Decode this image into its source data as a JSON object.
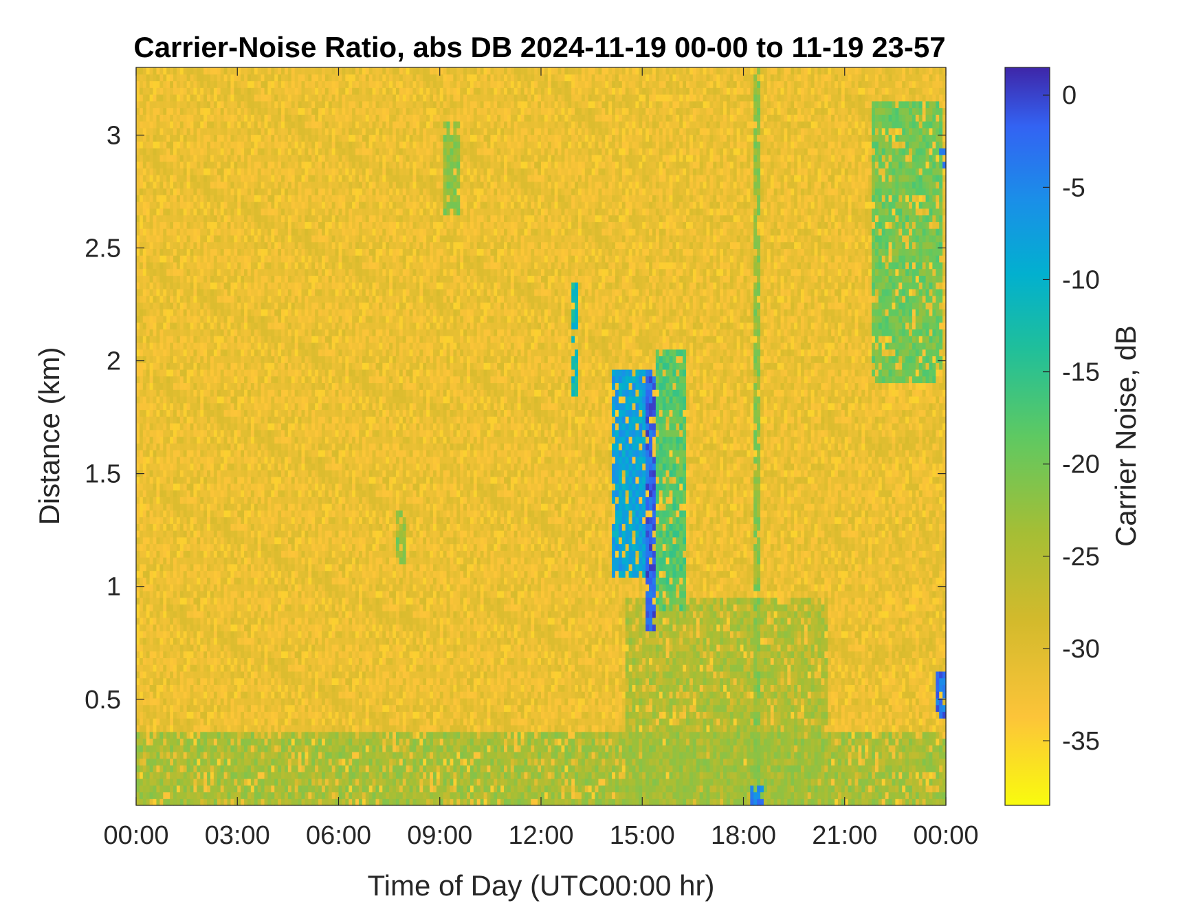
{
  "chart_data": {
    "type": "heatmap",
    "title": "Carrier-Noise Ratio, abs DB 2024-11-19 00-00 to 11-19 23-57",
    "xlabel": "Time of Day (UTC00:00 hr)",
    "ylabel": "Distance (km)",
    "colorbar_label": "Carrier Noise, dB",
    "x_range_hours": [
      0,
      24
    ],
    "y_range_km": [
      0.03,
      3.3
    ],
    "c_range_db": [
      -38.5,
      1.5
    ],
    "x_tick_values": [
      0,
      3,
      6,
      9,
      12,
      15,
      18,
      21,
      24
    ],
    "x_tick_labels": [
      "00:00",
      "03:00",
      "06:00",
      "09:00",
      "12:00",
      "15:00",
      "18:00",
      "21:00",
      "00:00"
    ],
    "y_tick_values": [
      0.5,
      1,
      1.5,
      2,
      2.5,
      3
    ],
    "y_tick_labels": [
      "0.5",
      "1",
      "1.5",
      "2",
      "2.5",
      "3"
    ],
    "c_tick_values": [
      0,
      -5,
      -10,
      -15,
      -20,
      -25,
      -30,
      -35
    ],
    "c_tick_labels": [
      "0",
      "-5",
      "-10",
      "-15",
      "-20",
      "-25",
      "-30",
      "-35"
    ],
    "colormap": "parula",
    "background_db": -32,
    "features": [
      {
        "desc": "near-ground layer",
        "t": [
          0,
          24
        ],
        "d": [
          0.03,
          0.35
        ],
        "db": -24
      },
      {
        "desc": "afternoon boundary layer",
        "t": [
          14.5,
          20.5
        ],
        "d": [
          0.03,
          0.95
        ],
        "db": -25
      },
      {
        "desc": "small plume",
        "t": [
          9.1,
          9.6
        ],
        "d": [
          2.65,
          3.05
        ],
        "db": -22
      },
      {
        "desc": "small plume",
        "t": [
          7.7,
          8.0
        ],
        "d": [
          1.1,
          1.35
        ],
        "db": -22
      },
      {
        "desc": "streak",
        "t": [
          12.9,
          13.1
        ],
        "d": [
          1.85,
          2.35
        ],
        "db": -12
      },
      {
        "desc": "strong echo cluster",
        "t": [
          14.1,
          15.1
        ],
        "d": [
          1.05,
          1.95
        ],
        "db": -8
      },
      {
        "desc": "strong echo core",
        "t": [
          15.1,
          15.4
        ],
        "d": [
          0.8,
          1.95
        ],
        "db": -2
      },
      {
        "desc": "weak streaks",
        "t": [
          15.4,
          16.3
        ],
        "d": [
          0.9,
          2.05
        ],
        "db": -18
      },
      {
        "desc": "vertical line",
        "t": [
          18.35,
          18.5
        ],
        "d": [
          0.03,
          3.3
        ],
        "db": -22
      },
      {
        "desc": "upper cloud",
        "t": [
          21.8,
          23.9
        ],
        "d": [
          1.9,
          3.15
        ],
        "db": -20
      },
      {
        "desc": "top-right echo",
        "t": [
          23.8,
          24
        ],
        "d": [
          2.85,
          2.95
        ],
        "db": -5
      },
      {
        "desc": "low-right echo",
        "t": [
          23.75,
          24
        ],
        "d": [
          0.42,
          0.62
        ],
        "db": -3
      },
      {
        "desc": "ground echo",
        "t": [
          18.25,
          18.55
        ],
        "d": [
          0.03,
          0.12
        ],
        "db": -5
      }
    ]
  }
}
